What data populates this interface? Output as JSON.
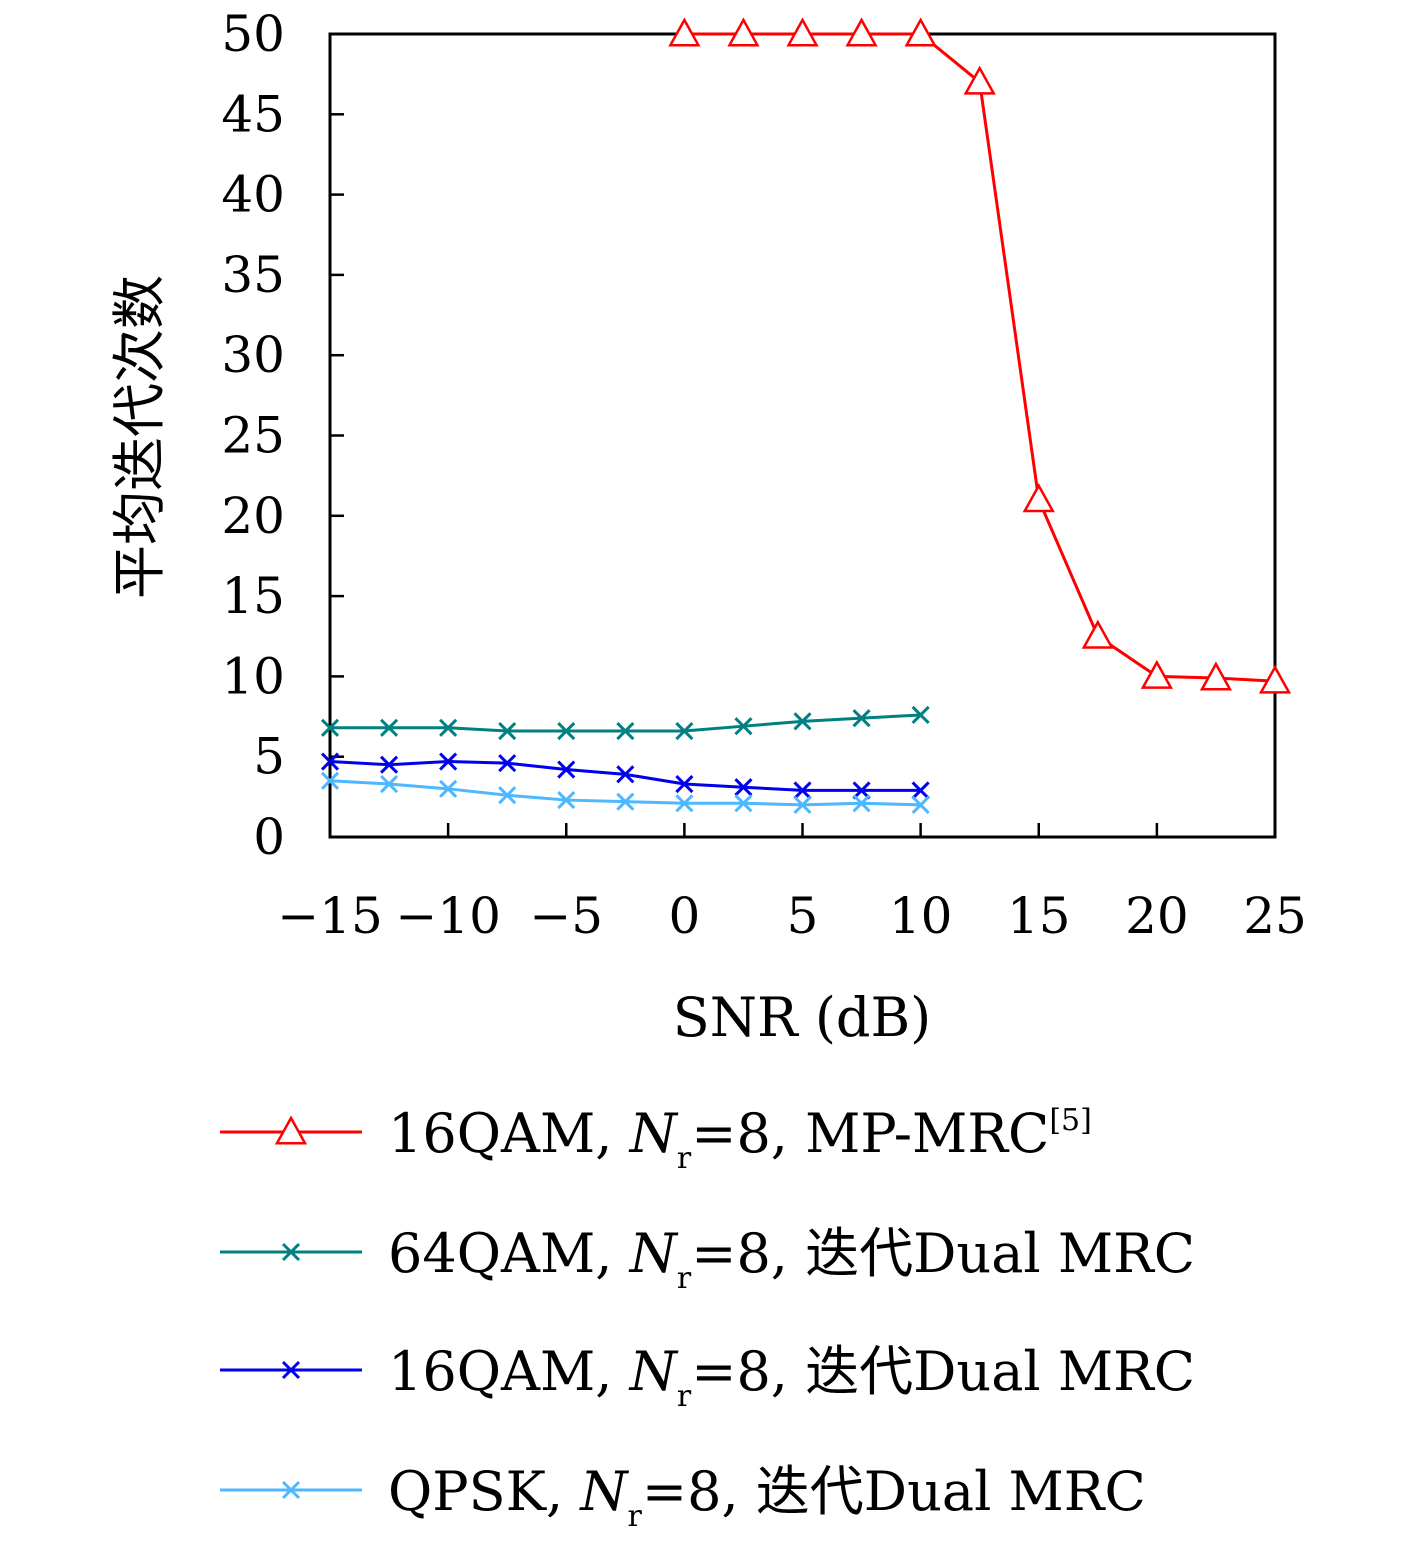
{
  "chart_data": {
    "type": "line",
    "title": "",
    "xlabel": "SNR (dB)",
    "ylabel": "平均迭代次数",
    "xlim": [
      -15,
      25
    ],
    "ylim": [
      0,
      50
    ],
    "xticks": [
      -15,
      -10,
      -5,
      0,
      5,
      10,
      15,
      20,
      25
    ],
    "yticks": [
      0,
      5,
      10,
      15,
      20,
      25,
      30,
      35,
      40,
      45,
      50
    ],
    "x_tick_labels": [
      "−15",
      "−10",
      "−5",
      "0",
      "5",
      "10",
      "15",
      "20",
      "25"
    ],
    "y_tick_labels": [
      "0",
      "5",
      "10",
      "15",
      "20",
      "25",
      "30",
      "35",
      "40",
      "45",
      "50"
    ],
    "grid": false,
    "legend_position": "below",
    "series": [
      {
        "id": "mp-mrc-16qam",
        "color": "#ff0000",
        "marker": "triangle-open",
        "legend": {
          "prefix": "16QAM, ",
          "var": "N",
          "sub": "r",
          "mid": "=8, MP-MRC",
          "sup": "[5]"
        },
        "x": [
          0,
          2.5,
          5,
          7.5,
          10,
          12.5,
          15,
          17.5,
          20,
          22.5,
          25
        ],
        "y": [
          50,
          50,
          50,
          50,
          50,
          47,
          21,
          12.5,
          10,
          9.9,
          9.7
        ]
      },
      {
        "id": "dual-mrc-64qam",
        "color": "#008080",
        "marker": "x",
        "legend": {
          "prefix": "64QAM, ",
          "var": "N",
          "sub": "r",
          "mid": "=8, 迭代Dual MRC",
          "sup": ""
        },
        "x": [
          -15,
          -12.5,
          -10,
          -7.5,
          -5,
          -2.5,
          0,
          2.5,
          5,
          7.5,
          10
        ],
        "y": [
          6.8,
          6.8,
          6.8,
          6.6,
          6.6,
          6.6,
          6.6,
          6.9,
          7.2,
          7.4,
          7.6
        ]
      },
      {
        "id": "dual-mrc-16qam",
        "color": "#0000ee",
        "marker": "x",
        "legend": {
          "prefix": "16QAM, ",
          "var": "N",
          "sub": "r",
          "mid": "=8, 迭代Dual MRC",
          "sup": ""
        },
        "x": [
          -15,
          -12.5,
          -10,
          -7.5,
          -5,
          -2.5,
          0,
          2.5,
          5,
          7.5,
          10
        ],
        "y": [
          4.7,
          4.5,
          4.7,
          4.6,
          4.2,
          3.9,
          3.3,
          3.1,
          2.9,
          2.9,
          2.9
        ]
      },
      {
        "id": "dual-mrc-qpsk",
        "color": "#4db8ff",
        "marker": "x",
        "legend": {
          "prefix": "QPSK, ",
          "var": "N",
          "sub": "r",
          "mid": "=8, 迭代Dual MRC",
          "sup": ""
        },
        "x": [
          -15,
          -12.5,
          -10,
          -7.5,
          -5,
          -2.5,
          0,
          2.5,
          5,
          7.5,
          10
        ],
        "y": [
          3.5,
          3.3,
          3.0,
          2.6,
          2.3,
          2.2,
          2.1,
          2.1,
          2.0,
          2.1,
          2.0
        ]
      }
    ]
  }
}
